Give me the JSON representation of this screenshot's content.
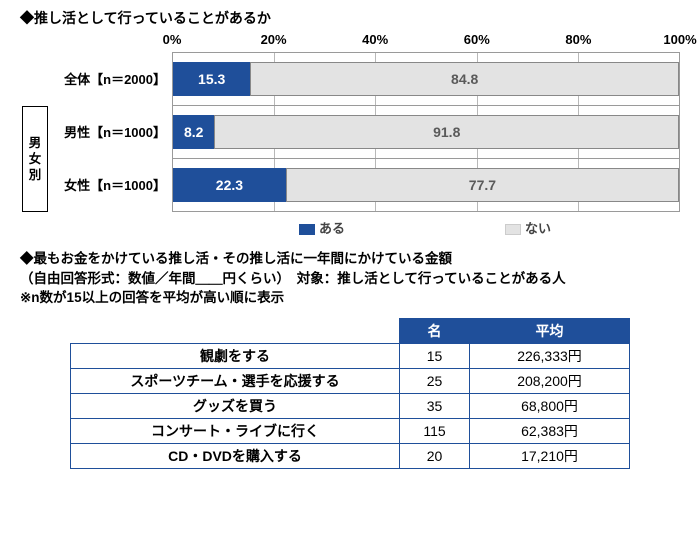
{
  "chart1": {
    "title": "◆推し活として行っていることがあるか",
    "type": "stacked-horizontal-bar",
    "xlim": [
      0,
      100
    ],
    "ticks": [
      0,
      20,
      40,
      60,
      80,
      100
    ],
    "tick_labels": [
      "0%",
      "20%",
      "40%",
      "60%",
      "80%",
      "100%"
    ],
    "colors": {
      "yes": "#1f4f9a",
      "no": "#e3e3e3",
      "grid": "#b8b8b8",
      "text_no": "#5a5a5a"
    },
    "group_label": "男女別",
    "rows": [
      {
        "label": "全体【n＝2000】",
        "yes": 15.3,
        "no": 84.8,
        "grouped": false
      },
      {
        "label": "男性【n＝1000】",
        "yes": 8.2,
        "no": 91.8,
        "grouped": true
      },
      {
        "label": "女性【n＝1000】",
        "yes": 22.3,
        "no": 77.7,
        "grouped": true
      }
    ],
    "legend": {
      "yes": "ある",
      "no": "ない"
    }
  },
  "notes": {
    "line1": "◆最もお金をかけている推し活・その推し活に一年間にかけている金額",
    "line2": "（自由回答形式：数値／年間＿＿円くらい）　対象：推し活として行っていることがある人",
    "line3": "※n数が15以上の回答を平均が高い順に表示"
  },
  "table": {
    "headers": {
      "name": "",
      "count": "名",
      "avg": "平均"
    },
    "rows": [
      {
        "name": "観劇をする",
        "count": 15,
        "avg": "226,333円"
      },
      {
        "name": "スポーツチーム・選手を応援する",
        "count": 25,
        "avg": "208,200円"
      },
      {
        "name": "グッズを買う",
        "count": 35,
        "avg": "68,800円"
      },
      {
        "name": "コンサート・ライブに行く",
        "count": 115,
        "avg": "62,383円"
      },
      {
        "name": "CD・DVDを購入する",
        "count": 20,
        "avg": "17,210円"
      }
    ],
    "colors": {
      "header_bg": "#1f4f9a",
      "border": "#1f4f9a"
    }
  }
}
